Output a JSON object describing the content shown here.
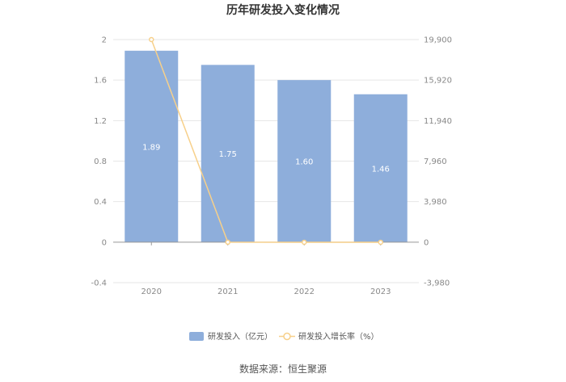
{
  "chart_data": {
    "type": "bar",
    "title": "历年研发投入变化情况",
    "categories": [
      "2020",
      "2021",
      "2022",
      "2023"
    ],
    "series": [
      {
        "name": "研发投入（亿元）",
        "type": "bar",
        "axis": "left",
        "color": "#8eaedb",
        "values": [
          1.89,
          1.75,
          1.6,
          1.46
        ],
        "labels": [
          "1.89",
          "1.75",
          "1.60",
          "1.46"
        ]
      },
      {
        "name": "研发投入增长率（%）",
        "type": "line",
        "axis": "right",
        "color": "#f7d08a",
        "values": [
          19900,
          -7.4,
          -8.6,
          -8.8
        ]
      }
    ],
    "y_left": {
      "min": -0.4,
      "max": 2,
      "ticks": [
        "-0.4",
        "0",
        "0.4",
        "0.8",
        "1.2",
        "1.6",
        "2"
      ]
    },
    "y_right": {
      "min": -3980,
      "max": 19900,
      "ticks": [
        "-3,980",
        "0",
        "3,980",
        "7,960",
        "11,940",
        "15,920",
        "19,900"
      ]
    },
    "grid": true,
    "legend_position": "bottom"
  },
  "source": "数据来源：恒生聚源"
}
